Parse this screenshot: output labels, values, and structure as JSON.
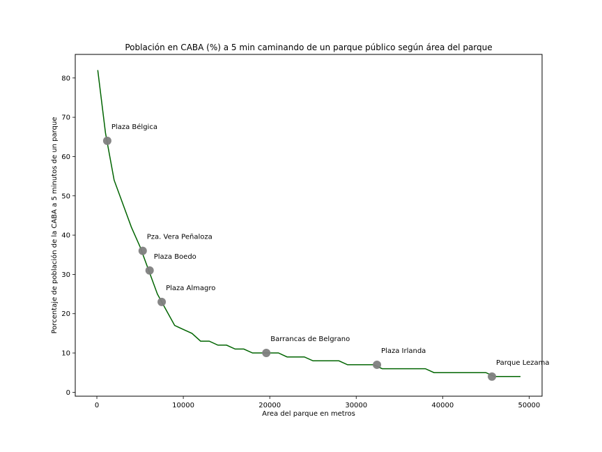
{
  "chart_data": {
    "type": "line",
    "title": "Población en CABA (%) a 5 min caminando de un parque público según área del parque",
    "xlabel": "Area del parque en metros",
    "ylabel": "Porcentaje de población de la CABA a 5 minutos de un parque",
    "xlim": [
      -2500,
      51500
    ],
    "ylim": [
      -1,
      86
    ],
    "xticks": [
      0,
      10000,
      20000,
      30000,
      40000,
      50000
    ],
    "yticks": [
      0,
      10,
      20,
      30,
      40,
      50,
      60,
      70,
      80
    ],
    "grid": false,
    "line_color": "#006400",
    "marker_color": "#808080",
    "series": [
      {
        "x": [
          100,
          1000,
          2000,
          3000,
          4000,
          5000,
          6000,
          7000,
          8000,
          9000,
          10000,
          11000,
          12000,
          13000,
          14000,
          15000,
          16000,
          17000,
          18000,
          19000,
          20000,
          21000,
          22000,
          23000,
          24000,
          25000,
          26000,
          27000,
          28000,
          29000,
          30000,
          31000,
          32000,
          33000,
          34000,
          35000,
          36000,
          37000,
          38000,
          39000,
          40000,
          41000,
          42000,
          43000,
          44000,
          45000,
          46000,
          47000,
          48000,
          49000
        ],
        "y": [
          82,
          66,
          54,
          48,
          42,
          37,
          31,
          25,
          21,
          17,
          16,
          15,
          13,
          13,
          12,
          12,
          11,
          11,
          10,
          10,
          10,
          10,
          9,
          9,
          9,
          8,
          8,
          8,
          8,
          7,
          7,
          7,
          7,
          6,
          6,
          6,
          6,
          6,
          6,
          5,
          5,
          5,
          5,
          5,
          5,
          5,
          4,
          4,
          4,
          4
        ]
      }
    ],
    "points": [
      {
        "label": "Plaza Bélgica",
        "x": 1200,
        "y": 64
      },
      {
        "label": "Pza. Vera Peñaloza",
        "x": 5300,
        "y": 36
      },
      {
        "label": "Plaza Boedo",
        "x": 6100,
        "y": 31
      },
      {
        "label": "Plaza Almagro",
        "x": 7500,
        "y": 23
      },
      {
        "label": "Barrancas de Belgrano",
        "x": 19600,
        "y": 10
      },
      {
        "label": "Plaza Irlanda",
        "x": 32400,
        "y": 7
      },
      {
        "label": "Parque Lezama",
        "x": 45700,
        "y": 4
      }
    ]
  }
}
